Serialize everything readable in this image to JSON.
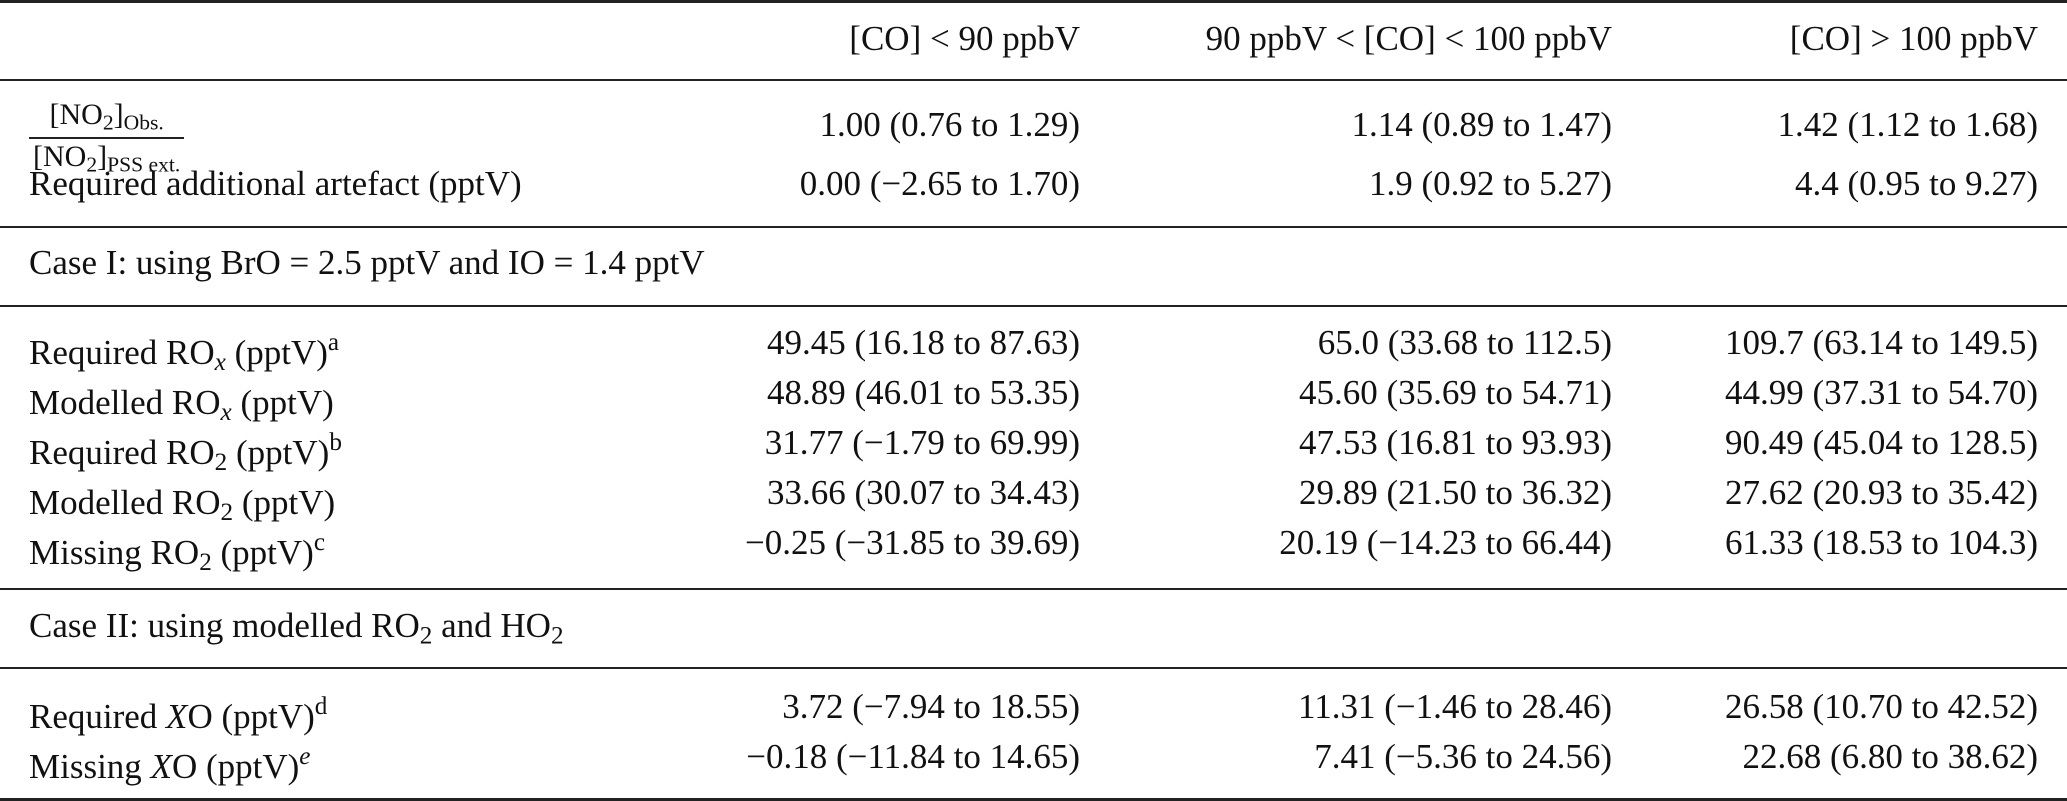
{
  "header": {
    "col1": "[CO] < 90 ppbV",
    "col2": "90 ppbV < [CO] < 100 ppbV",
    "col3": "[CO] > 100 ppbV"
  },
  "rows": {
    "ratio": {
      "numerator": "[NO",
      "num_sub": "2",
      "num_close": "]",
      "num_sub2": "Obs.",
      "denominator": "[NO",
      "den_sub": "2",
      "den_close": "]",
      "den_sub2": "PSS ext.",
      "values": [
        "1.00 (0.76 to 1.29)",
        "1.14 (0.89 to 1.47)",
        "1.42 (1.12 to 1.68)"
      ]
    },
    "artefact": {
      "label": "Required additional artefact (pptV)",
      "values": [
        "0.00 (−2.65 to 1.70)",
        "1.9 (0.92 to 5.27)",
        "4.4 (0.95 to 9.27)"
      ]
    }
  },
  "case1": {
    "heading": "Case I: using BrO = 2.5 pptV and IO = 1.4 pptV",
    "rows": [
      {
        "pre": "Required RO",
        "sub": "x",
        "post": " (pptV)",
        "sup": "a",
        "values": [
          "49.45 (16.18 to 87.63)",
          "65.0 (33.68 to 112.5)",
          "109.7 (63.14 to 149.5)"
        ]
      },
      {
        "pre": "Modelled RO",
        "sub": "x",
        "post": " (pptV)",
        "sup": "",
        "values": [
          "48.89 (46.01 to 53.35)",
          "45.60 (35.69 to 54.71)",
          "44.99 (37.31 to 54.70)"
        ]
      },
      {
        "pre": "Required RO",
        "sub": "2",
        "post": " (pptV)",
        "sup": "b",
        "values": [
          "31.77 (−1.79 to 69.99)",
          "47.53 (16.81 to 93.93)",
          "90.49 (45.04 to 128.5)"
        ]
      },
      {
        "pre": "Modelled RO",
        "sub": "2",
        "post": " (pptV)",
        "sup": "",
        "values": [
          "33.66 (30.07 to 34.43)",
          "29.89 (21.50 to 36.32)",
          "27.62 (20.93 to 35.42)"
        ]
      },
      {
        "pre": "Missing RO",
        "sub": "2",
        "post": " (pptV)",
        "sup": "c",
        "values": [
          "−0.25 (−31.85 to 39.69)",
          "20.19 (−14.23 to 66.44)",
          "61.33 (18.53 to 104.3)"
        ]
      }
    ]
  },
  "case2": {
    "heading_pre": "Case II: using modelled RO",
    "heading_sub1": "2",
    "heading_mid": " and HO",
    "heading_sub2": "2",
    "rows": [
      {
        "pre": "Required ",
        "var": "X",
        "post": "O (pptV)",
        "sup": "d",
        "values": [
          "3.72 (−7.94 to 18.55)",
          "11.31 (−1.46 to 28.46)",
          "26.58 (10.70 to 42.52)"
        ]
      },
      {
        "pre": "Missing ",
        "var": "X",
        "post": "O (pptV)",
        "sup": "e",
        "values": [
          "−0.18 (−11.84 to 14.65)",
          "7.41 (−5.36 to 24.56)",
          "22.68 (6.80 to 38.62)"
        ]
      }
    ]
  }
}
